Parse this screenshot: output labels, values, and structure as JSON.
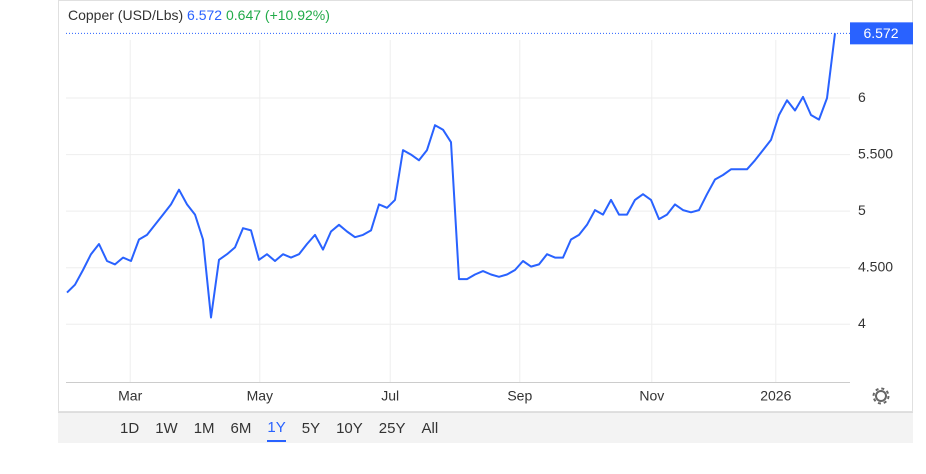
{
  "chart_data": {
    "type": "line",
    "title": "Copper (USD/Lbs)",
    "change": "0.647",
    "change_percent": "(+10.92%)",
    "color": "#2962ff",
    "grid": true,
    "y_axis_side": "right",
    "xlim": [
      0,
      96
    ],
    "ylim": [
      3.49,
      6.69
    ],
    "xticks": [
      {
        "value": 7.9,
        "label": "Mar"
      },
      {
        "value": 24.1,
        "label": "May"
      },
      {
        "value": 40.4,
        "label": "Jul"
      },
      {
        "value": 56.6,
        "label": "Sep"
      },
      {
        "value": 73.1,
        "label": "Nov"
      },
      {
        "value": 88.6,
        "label": "2026"
      }
    ],
    "yticks": [
      4,
      {
        "value": 4.5,
        "label": "4.500"
      },
      5,
      {
        "value": 5.5,
        "label": "5.500"
      },
      6
    ],
    "values": [
      4.28,
      4.35,
      4.48,
      4.62,
      4.71,
      4.56,
      4.53,
      4.59,
      4.56,
      4.75,
      4.79,
      4.88,
      4.97,
      5.06,
      5.19,
      5.06,
      4.97,
      4.75,
      4.06,
      4.57,
      4.62,
      4.68,
      4.85,
      4.83,
      4.57,
      4.62,
      4.56,
      4.62,
      4.59,
      4.62,
      4.71,
      4.79,
      4.66,
      4.82,
      4.88,
      4.82,
      4.77,
      4.79,
      4.83,
      5.06,
      5.03,
      5.1,
      5.54,
      5.5,
      5.45,
      5.54,
      5.76,
      5.72,
      5.61,
      4.4,
      4.4,
      4.44,
      4.47,
      4.44,
      4.42,
      4.44,
      4.48,
      4.56,
      4.51,
      4.53,
      4.62,
      4.59,
      4.59,
      4.75,
      4.79,
      4.88,
      5.01,
      4.97,
      5.1,
      4.97,
      4.97,
      5.1,
      5.15,
      5.1,
      4.93,
      4.97,
      5.06,
      5.01,
      4.99,
      5.01,
      5.15,
      5.28,
      5.32,
      5.37,
      5.37,
      5.37,
      5.45,
      5.54,
      5.63,
      5.85,
      5.98,
      5.89,
      6.01,
      5.85,
      5.81,
      6.0,
      6.572
    ],
    "range_buttons": [
      "1D",
      "1W",
      "1M",
      "6M",
      "1Y",
      "5Y",
      "10Y",
      "25Y",
      "All"
    ],
    "active_range": "1Y"
  }
}
